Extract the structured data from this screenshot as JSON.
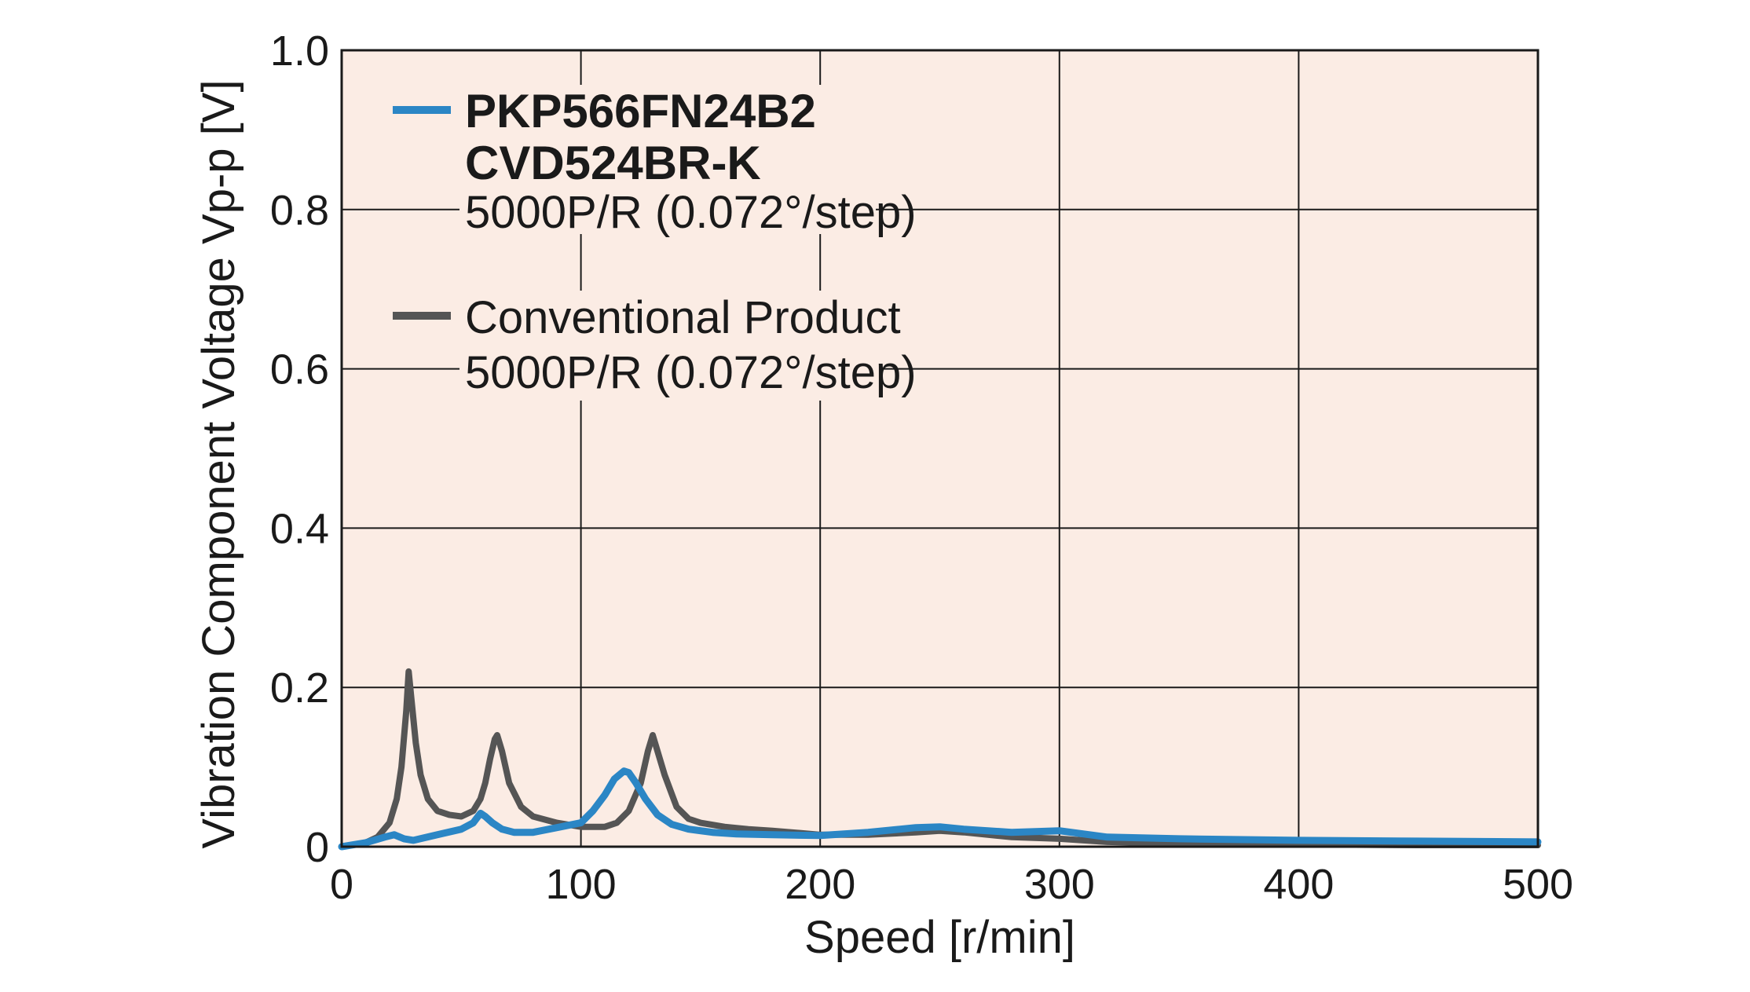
{
  "chart_data": {
    "type": "line",
    "xlabel": "Speed [r/min]",
    "ylabel": "Vibration Component Voltage Vp-p [V]",
    "xlim": [
      0,
      500
    ],
    "ylim": [
      0,
      1.0
    ],
    "x_ticks": [
      "0",
      "100",
      "200",
      "300",
      "400",
      "500"
    ],
    "y_ticks": [
      "0",
      "0.2",
      "0.4",
      "0.6",
      "0.8",
      "1.0"
    ],
    "grid": true,
    "legend_position": "top-left",
    "background_color": "#fbece4",
    "series": [
      {
        "name": "PKP566FN24B2",
        "legend_lines": [
          "PKP566FN24B2",
          "CVD524BR-K",
          "5000P/R (0.072°/step)"
        ],
        "color": "#2b86c5",
        "x": [
          0,
          10,
          18,
          22,
          26,
          30,
          40,
          50,
          55,
          58,
          60,
          63,
          67,
          72,
          80,
          90,
          100,
          105,
          110,
          114,
          118,
          120,
          123,
          127,
          132,
          138,
          145,
          155,
          165,
          180,
          200,
          220,
          240,
          250,
          260,
          280,
          300,
          320,
          350,
          400,
          450,
          500
        ],
        "y": [
          0.0,
          0.005,
          0.012,
          0.015,
          0.01,
          0.008,
          0.015,
          0.022,
          0.03,
          0.042,
          0.038,
          0.03,
          0.022,
          0.018,
          0.018,
          0.024,
          0.03,
          0.045,
          0.065,
          0.085,
          0.095,
          0.093,
          0.08,
          0.06,
          0.04,
          0.028,
          0.022,
          0.018,
          0.016,
          0.015,
          0.014,
          0.018,
          0.024,
          0.025,
          0.022,
          0.018,
          0.02,
          0.012,
          0.01,
          0.008,
          0.007,
          0.006
        ]
      },
      {
        "name": "Conventional Product",
        "legend_lines": [
          "Conventional Product",
          "5000P/R (0.072°/step)"
        ],
        "color": "#555555",
        "x": [
          0,
          10,
          15,
          20,
          23,
          25,
          27,
          28,
          29,
          31,
          33,
          36,
          40,
          45,
          50,
          55,
          58,
          60,
          62,
          64,
          65,
          67,
          70,
          75,
          80,
          90,
          100,
          110,
          115,
          120,
          125,
          128,
          130,
          132,
          135,
          140,
          145,
          150,
          160,
          170,
          180,
          200,
          220,
          240,
          250,
          260,
          280,
          300,
          320,
          350,
          400,
          450,
          500
        ],
        "y": [
          0.0,
          0.005,
          0.012,
          0.03,
          0.06,
          0.1,
          0.17,
          0.22,
          0.19,
          0.13,
          0.09,
          0.06,
          0.045,
          0.04,
          0.038,
          0.045,
          0.06,
          0.08,
          0.11,
          0.135,
          0.14,
          0.12,
          0.08,
          0.05,
          0.038,
          0.03,
          0.025,
          0.025,
          0.03,
          0.045,
          0.08,
          0.12,
          0.14,
          0.12,
          0.09,
          0.05,
          0.035,
          0.03,
          0.025,
          0.022,
          0.02,
          0.015,
          0.015,
          0.018,
          0.02,
          0.018,
          0.012,
          0.01,
          0.006,
          0.004,
          0.003,
          0.002,
          0.002
        ]
      }
    ]
  }
}
